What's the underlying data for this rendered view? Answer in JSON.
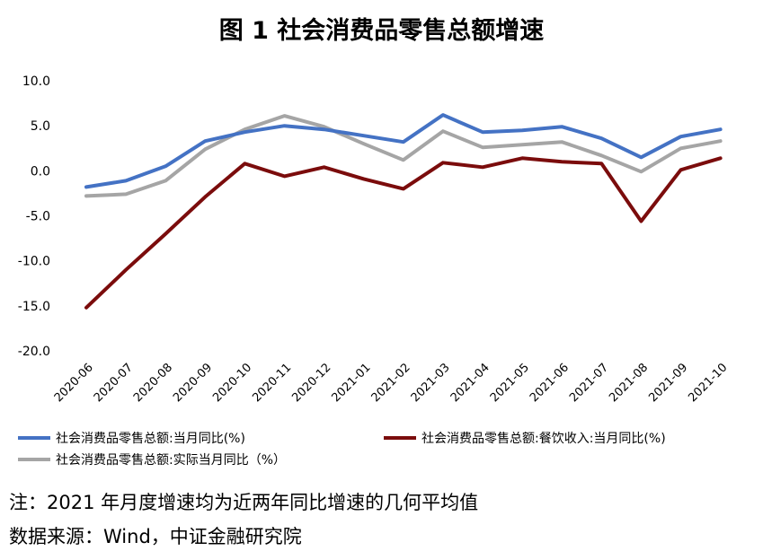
{
  "chart_data": {
    "type": "line",
    "title": "图 1 社会消费品零售总额增速",
    "categories": [
      "2020-06",
      "2020-07",
      "2020-08",
      "2020-09",
      "2020-10",
      "2020-11",
      "2020-12",
      "2021-01",
      "2021-02",
      "2021-03",
      "2021-04",
      "2021-05",
      "2021-06",
      "2021-07",
      "2021-08",
      "2021-09",
      "2021-10"
    ],
    "y_ticks": [
      "10.0",
      "5.0",
      "0.0",
      "-5.0",
      "-10.0",
      "-15.0",
      "-20.0"
    ],
    "ylim": [
      -20,
      10
    ],
    "grid": false,
    "legend_position": "bottom",
    "series": [
      {
        "name": "社会消费品零售总额:当月同比(%)",
        "color": "#4472C4",
        "values": [
          -1.8,
          -1.1,
          0.5,
          3.3,
          4.3,
          5.0,
          4.6,
          3.9,
          3.2,
          6.2,
          4.3,
          4.5,
          4.9,
          3.6,
          1.5,
          3.8,
          4.6
        ]
      },
      {
        "name": "社会消费品零售总额:餐饮收入:当月同比(%)",
        "color": "#7B0C0C",
        "values": [
          -15.2,
          -11.0,
          -7.0,
          -2.9,
          0.8,
          -0.6,
          0.4,
          -0.9,
          -2.0,
          0.9,
          0.4,
          1.4,
          1.0,
          0.8,
          -5.6,
          0.1,
          1.4
        ]
      },
      {
        "name": "社会消费品零售总额:实际当月同比（%）",
        "color": "#A5A5A5",
        "values": [
          -2.8,
          -2.6,
          -1.1,
          2.4,
          4.6,
          6.1,
          4.9,
          3.0,
          1.2,
          4.4,
          2.6,
          2.9,
          3.2,
          1.7,
          -0.1,
          2.5,
          3.3
        ]
      }
    ]
  },
  "notes": {
    "note": "注：2021 年月度增速均为近两年同比增速的几何平均值",
    "source": "数据来源：Wind，中证金融研究院"
  }
}
